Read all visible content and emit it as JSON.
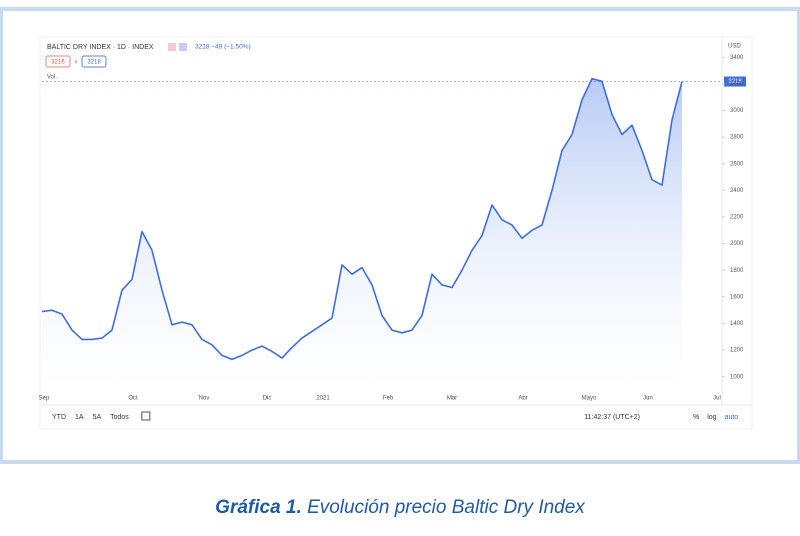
{
  "chart_data": {
    "type": "line",
    "title": "BALTIC DRY INDEX · 1D · INDEX",
    "change": "3218 −49 (−1.50%)",
    "price_boxes": [
      "3216",
      "3218"
    ],
    "volume_label": "Vol.",
    "currency": "USD",
    "color": "#3d6ee0",
    "values": [
      1490,
      1500,
      1470,
      1350,
      1280,
      1280,
      1290,
      1350,
      1650,
      1730,
      2090,
      1950,
      1650,
      1390,
      1410,
      1390,
      1280,
      1240,
      1160,
      1130,
      1160,
      1200,
      1230,
      1190,
      1140,
      1220,
      1290,
      1340,
      1390,
      1440,
      1840,
      1770,
      1820,
      1690,
      1460,
      1350,
      1330,
      1350,
      1460,
      1770,
      1690,
      1670,
      1800,
      1950,
      2060,
      2290,
      2180,
      2140,
      2040,
      2100,
      2140,
      2400,
      2700,
      2820,
      3080,
      3240,
      3220,
      2970,
      2820,
      2890,
      2700,
      2480,
      2440,
      2930,
      3218
    ],
    "xlim": [
      0,
      68
    ],
    "xticks": [
      {
        "value": 0.2,
        "label": "Sep"
      },
      {
        "value": 9.1,
        "label": "Oct"
      },
      {
        "value": 16.2,
        "label": "Nov"
      },
      {
        "value": 22.5,
        "label": "Dic"
      },
      {
        "value": 28.1,
        "label": "2021"
      },
      {
        "value": 34.6,
        "label": "Feb"
      },
      {
        "value": 41,
        "label": "Mar"
      },
      {
        "value": 48.1,
        "label": "Abr"
      },
      {
        "value": 54.7,
        "label": "Mayo"
      },
      {
        "value": 60.6,
        "label": "Jun"
      },
      {
        "value": 67.5,
        "label": "Jul"
      }
    ],
    "ylim": [
      900,
      3500
    ],
    "yticks": [
      1000,
      1200,
      1400,
      1600,
      1800,
      2000,
      2200,
      2400,
      2600,
      2800,
      3000,
      3200,
      3400
    ]
  },
  "toolbar": {
    "ranges": [
      "YTD",
      "1A",
      "5A",
      "Todos"
    ],
    "time": "11:42:37 (UTC+2)",
    "options": [
      "%",
      "log",
      "auto"
    ]
  },
  "caption": {
    "label": "Gráfica 1.",
    "text": "Evolución precio Baltic Dry Index"
  }
}
